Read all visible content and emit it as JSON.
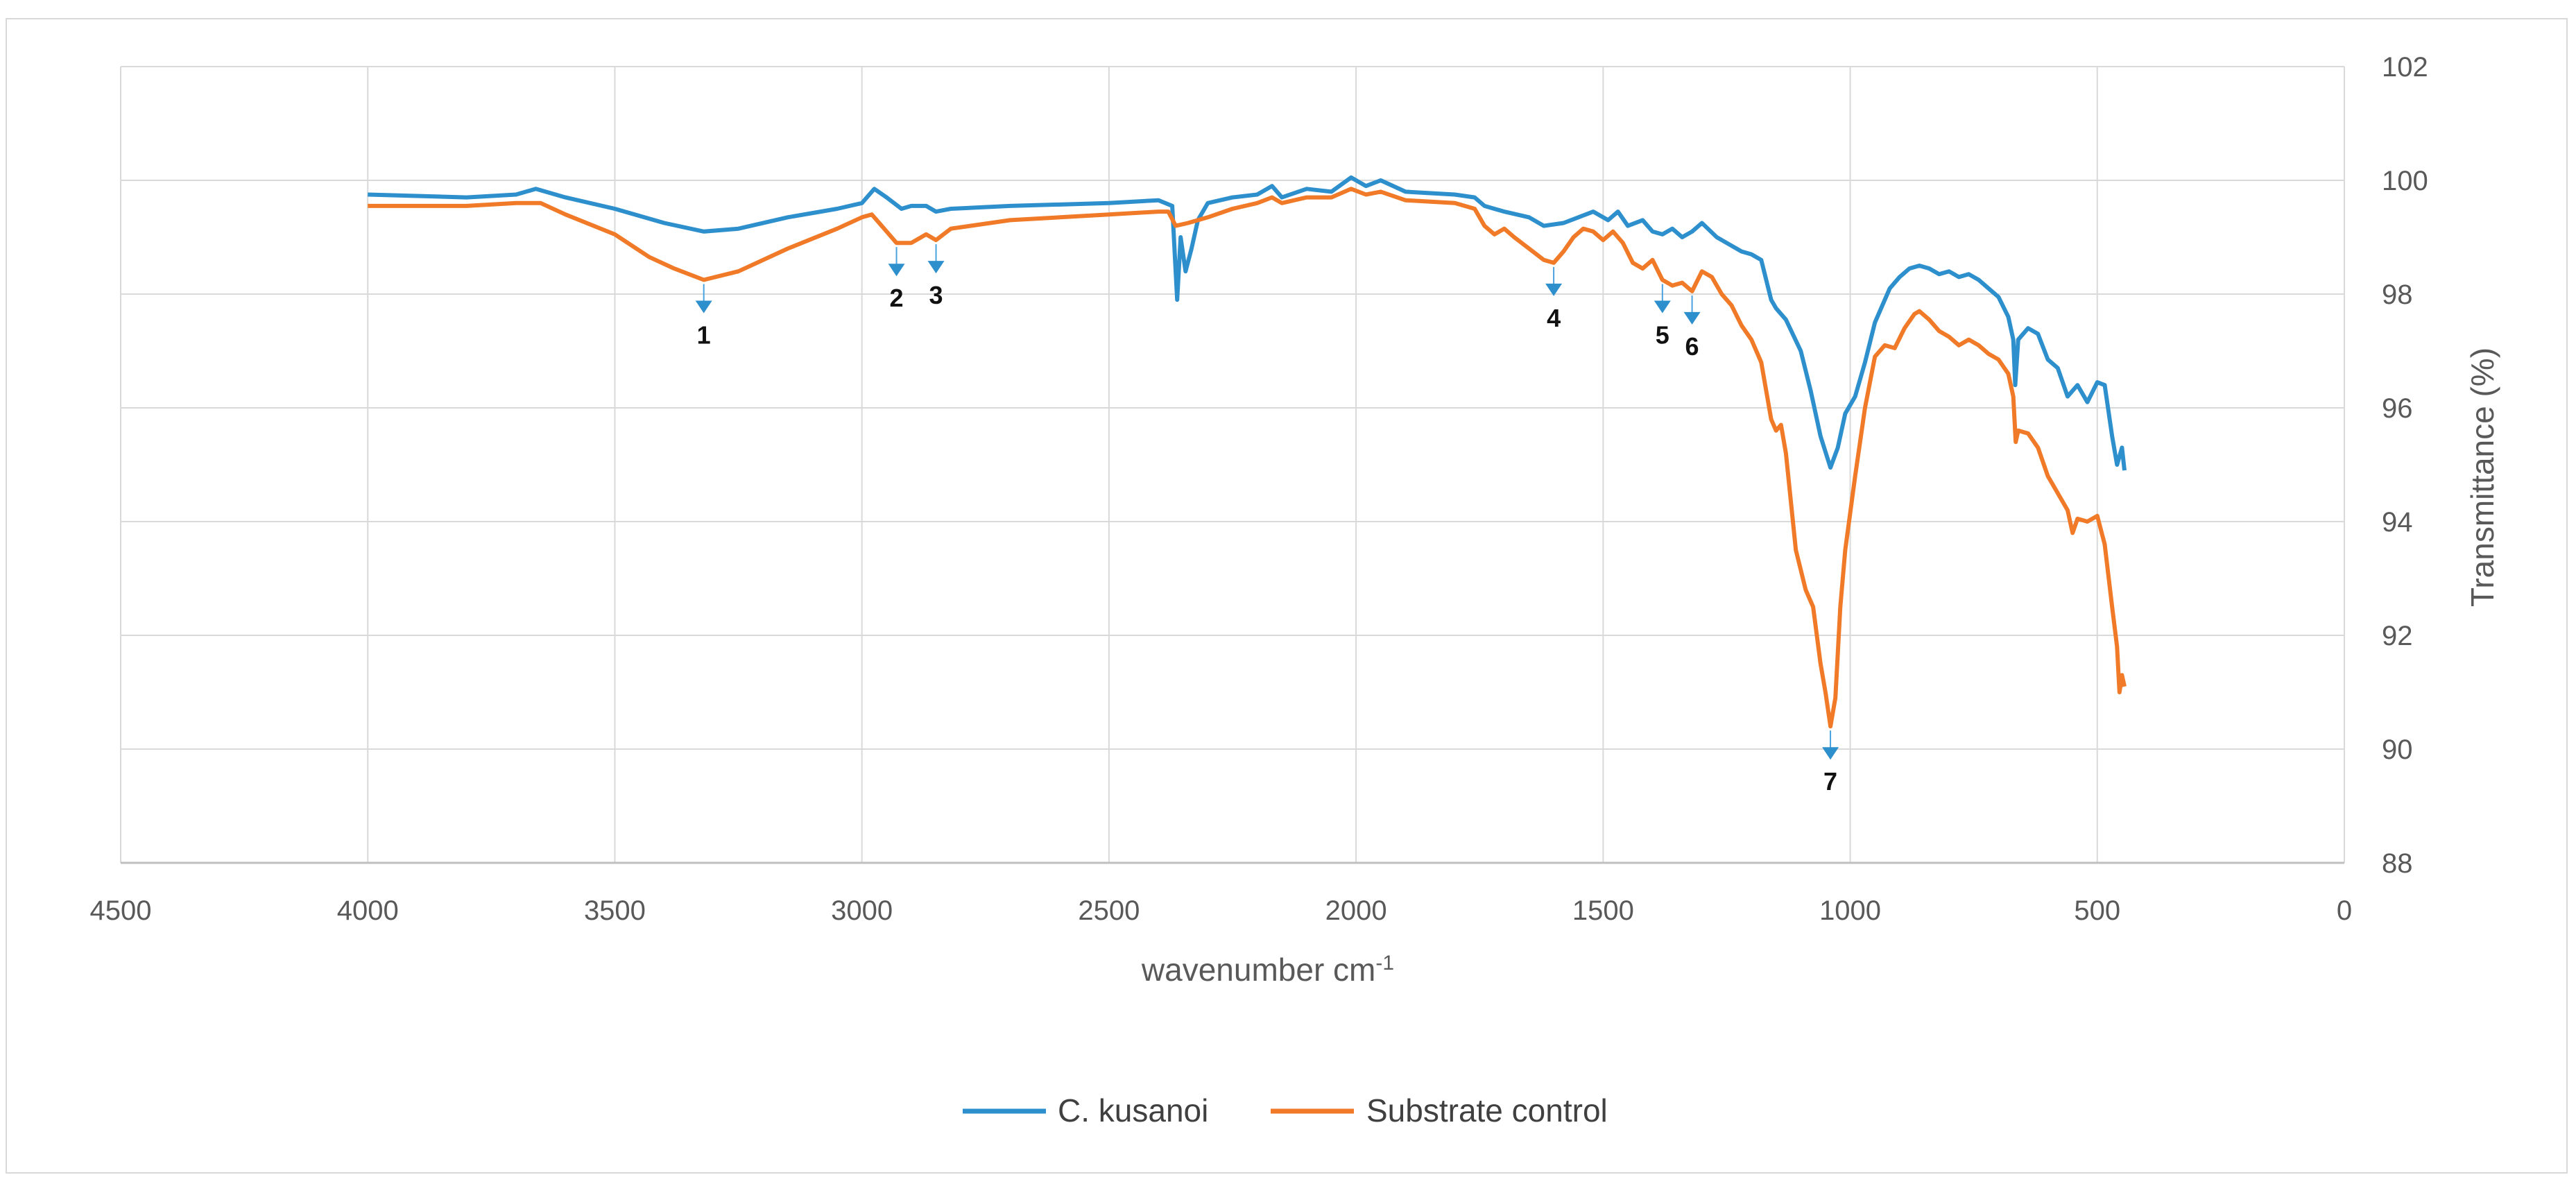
{
  "chart_data": {
    "type": "line",
    "title": "",
    "xlabel": "wavenumber cm-1",
    "xlabel_main": "wavenumber cm",
    "xlabel_sup": "-1",
    "ylabel": "Transmittance (%)",
    "xlim": [
      4500,
      0
    ],
    "ylim": [
      88,
      102
    ],
    "x_reversed": true,
    "y_axis_position": "right",
    "x_ticks": [
      4500,
      4000,
      3500,
      3000,
      2500,
      2000,
      1500,
      1000,
      500,
      0
    ],
    "y_ticks": [
      88,
      90,
      92,
      94,
      96,
      98,
      100,
      102
    ],
    "grid": true,
    "legend_position": "bottom",
    "series": [
      {
        "name": "C. kusanoi",
        "color": "#2e8fcd",
        "points": [
          [
            4000,
            99.75
          ],
          [
            3800,
            99.7
          ],
          [
            3700,
            99.75
          ],
          [
            3660,
            99.85
          ],
          [
            3600,
            99.7
          ],
          [
            3500,
            99.5
          ],
          [
            3400,
            99.25
          ],
          [
            3320,
            99.1
          ],
          [
            3250,
            99.15
          ],
          [
            3150,
            99.35
          ],
          [
            3050,
            99.5
          ],
          [
            3000,
            99.6
          ],
          [
            2975,
            99.85
          ],
          [
            2950,
            99.7
          ],
          [
            2920,
            99.5
          ],
          [
            2900,
            99.55
          ],
          [
            2870,
            99.55
          ],
          [
            2850,
            99.45
          ],
          [
            2820,
            99.5
          ],
          [
            2700,
            99.55
          ],
          [
            2500,
            99.6
          ],
          [
            2400,
            99.65
          ],
          [
            2372,
            99.55
          ],
          [
            2362,
            97.9
          ],
          [
            2355,
            99.0
          ],
          [
            2345,
            98.4
          ],
          [
            2333,
            98.8
          ],
          [
            2320,
            99.3
          ],
          [
            2300,
            99.6
          ],
          [
            2250,
            99.7
          ],
          [
            2200,
            99.75
          ],
          [
            2170,
            99.9
          ],
          [
            2150,
            99.7
          ],
          [
            2100,
            99.85
          ],
          [
            2050,
            99.8
          ],
          [
            2010,
            100.05
          ],
          [
            1980,
            99.9
          ],
          [
            1950,
            100.0
          ],
          [
            1900,
            99.8
          ],
          [
            1800,
            99.75
          ],
          [
            1760,
            99.7
          ],
          [
            1740,
            99.55
          ],
          [
            1700,
            99.45
          ],
          [
            1650,
            99.35
          ],
          [
            1620,
            99.2
          ],
          [
            1580,
            99.25
          ],
          [
            1550,
            99.35
          ],
          [
            1520,
            99.45
          ],
          [
            1490,
            99.3
          ],
          [
            1470,
            99.45
          ],
          [
            1450,
            99.2
          ],
          [
            1420,
            99.3
          ],
          [
            1400,
            99.1
          ],
          [
            1380,
            99.05
          ],
          [
            1360,
            99.15
          ],
          [
            1340,
            99.0
          ],
          [
            1320,
            99.1
          ],
          [
            1300,
            99.25
          ],
          [
            1270,
            99.0
          ],
          [
            1250,
            98.9
          ],
          [
            1220,
            98.75
          ],
          [
            1200,
            98.7
          ],
          [
            1180,
            98.6
          ],
          [
            1160,
            97.9
          ],
          [
            1150,
            97.75
          ],
          [
            1130,
            97.55
          ],
          [
            1100,
            97.0
          ],
          [
            1080,
            96.3
          ],
          [
            1060,
            95.5
          ],
          [
            1040,
            94.95
          ],
          [
            1025,
            95.3
          ],
          [
            1010,
            95.9
          ],
          [
            990,
            96.2
          ],
          [
            970,
            96.8
          ],
          [
            950,
            97.5
          ],
          [
            920,
            98.1
          ],
          [
            900,
            98.3
          ],
          [
            880,
            98.45
          ],
          [
            860,
            98.5
          ],
          [
            840,
            98.45
          ],
          [
            820,
            98.35
          ],
          [
            800,
            98.4
          ],
          [
            780,
            98.3
          ],
          [
            760,
            98.35
          ],
          [
            740,
            98.25
          ],
          [
            720,
            98.1
          ],
          [
            700,
            97.95
          ],
          [
            680,
            97.6
          ],
          [
            670,
            97.2
          ],
          [
            666,
            96.4
          ],
          [
            660,
            97.2
          ],
          [
            640,
            97.4
          ],
          [
            620,
            97.3
          ],
          [
            600,
            96.85
          ],
          [
            580,
            96.7
          ],
          [
            560,
            96.2
          ],
          [
            540,
            96.4
          ],
          [
            520,
            96.1
          ],
          [
            500,
            96.45
          ],
          [
            485,
            96.4
          ],
          [
            470,
            95.5
          ],
          [
            460,
            95.0
          ],
          [
            450,
            95.3
          ],
          [
            445,
            94.9
          ]
        ]
      },
      {
        "name": "Substrate control",
        "color": "#f07a28",
        "points": [
          [
            4000,
            99.55
          ],
          [
            3800,
            99.55
          ],
          [
            3700,
            99.6
          ],
          [
            3650,
            99.6
          ],
          [
            3600,
            99.4
          ],
          [
            3500,
            99.05
          ],
          [
            3430,
            98.65
          ],
          [
            3380,
            98.45
          ],
          [
            3320,
            98.25
          ],
          [
            3250,
            98.4
          ],
          [
            3150,
            98.8
          ],
          [
            3050,
            99.15
          ],
          [
            3000,
            99.35
          ],
          [
            2980,
            99.4
          ],
          [
            2960,
            99.2
          ],
          [
            2930,
            98.9
          ],
          [
            2900,
            98.9
          ],
          [
            2870,
            99.05
          ],
          [
            2850,
            98.95
          ],
          [
            2820,
            99.15
          ],
          [
            2700,
            99.3
          ],
          [
            2500,
            99.4
          ],
          [
            2400,
            99.45
          ],
          [
            2380,
            99.45
          ],
          [
            2365,
            99.2
          ],
          [
            2340,
            99.25
          ],
          [
            2300,
            99.35
          ],
          [
            2250,
            99.5
          ],
          [
            2200,
            99.6
          ],
          [
            2170,
            99.7
          ],
          [
            2150,
            99.6
          ],
          [
            2100,
            99.7
          ],
          [
            2050,
            99.7
          ],
          [
            2010,
            99.85
          ],
          [
            1980,
            99.75
          ],
          [
            1950,
            99.8
          ],
          [
            1900,
            99.65
          ],
          [
            1800,
            99.6
          ],
          [
            1760,
            99.5
          ],
          [
            1740,
            99.2
          ],
          [
            1720,
            99.05
          ],
          [
            1700,
            99.15
          ],
          [
            1680,
            99.0
          ],
          [
            1650,
            98.8
          ],
          [
            1620,
            98.6
          ],
          [
            1600,
            98.55
          ],
          [
            1580,
            98.75
          ],
          [
            1560,
            99.0
          ],
          [
            1540,
            99.15
          ],
          [
            1520,
            99.1
          ],
          [
            1500,
            98.95
          ],
          [
            1480,
            99.1
          ],
          [
            1460,
            98.9
          ],
          [
            1440,
            98.55
          ],
          [
            1420,
            98.45
          ],
          [
            1400,
            98.6
          ],
          [
            1380,
            98.25
          ],
          [
            1360,
            98.15
          ],
          [
            1340,
            98.2
          ],
          [
            1320,
            98.05
          ],
          [
            1300,
            98.4
          ],
          [
            1280,
            98.3
          ],
          [
            1260,
            98.0
          ],
          [
            1240,
            97.8
          ],
          [
            1220,
            97.45
          ],
          [
            1200,
            97.2
          ],
          [
            1180,
            96.8
          ],
          [
            1160,
            95.8
          ],
          [
            1150,
            95.6
          ],
          [
            1140,
            95.7
          ],
          [
            1130,
            95.2
          ],
          [
            1110,
            93.5
          ],
          [
            1090,
            92.8
          ],
          [
            1075,
            92.5
          ],
          [
            1060,
            91.5
          ],
          [
            1050,
            91.0
          ],
          [
            1040,
            90.4
          ],
          [
            1030,
            90.9
          ],
          [
            1020,
            92.5
          ],
          [
            1010,
            93.5
          ],
          [
            990,
            94.8
          ],
          [
            970,
            96.0
          ],
          [
            950,
            96.9
          ],
          [
            930,
            97.1
          ],
          [
            910,
            97.05
          ],
          [
            890,
            97.4
          ],
          [
            870,
            97.65
          ],
          [
            860,
            97.7
          ],
          [
            840,
            97.55
          ],
          [
            820,
            97.35
          ],
          [
            800,
            97.25
          ],
          [
            780,
            97.1
          ],
          [
            760,
            97.2
          ],
          [
            740,
            97.1
          ],
          [
            720,
            96.95
          ],
          [
            700,
            96.85
          ],
          [
            680,
            96.6
          ],
          [
            670,
            96.2
          ],
          [
            665,
            95.4
          ],
          [
            660,
            95.6
          ],
          [
            640,
            95.55
          ],
          [
            620,
            95.3
          ],
          [
            600,
            94.8
          ],
          [
            580,
            94.5
          ],
          [
            560,
            94.2
          ],
          [
            550,
            93.8
          ],
          [
            540,
            94.05
          ],
          [
            520,
            94.0
          ],
          [
            500,
            94.1
          ],
          [
            485,
            93.6
          ],
          [
            470,
            92.5
          ],
          [
            460,
            91.8
          ],
          [
            455,
            91.0
          ],
          [
            450,
            91.3
          ],
          [
            445,
            91.1
          ]
        ]
      }
    ],
    "annotations": [
      {
        "label": "1",
        "x": 3320,
        "y": 98.25
      },
      {
        "label": "2",
        "x": 2930,
        "y": 98.9
      },
      {
        "label": "3",
        "x": 2850,
        "y": 98.95
      },
      {
        "label": "4",
        "x": 1600,
        "y": 98.55
      },
      {
        "label": "5",
        "x": 1380,
        "y": 98.25
      },
      {
        "label": "6",
        "x": 1320,
        "y": 98.05
      },
      {
        "label": "7",
        "x": 1040,
        "y": 90.4
      }
    ]
  }
}
